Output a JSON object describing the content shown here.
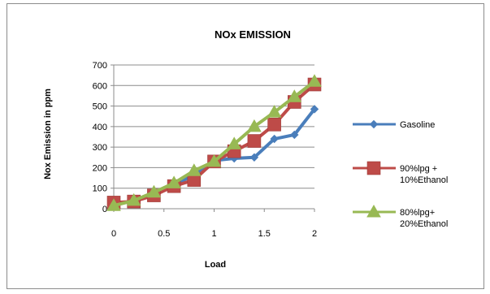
{
  "chart_data": {
    "type": "line",
    "title": "NOx  EMISSION",
    "xlabel": "Load",
    "ylabel": "Nox Emission in ppm",
    "xlim": [
      0,
      2
    ],
    "ylim": [
      0,
      700
    ],
    "xticks": [
      0,
      0.5,
      1,
      1.5,
      2
    ],
    "xtick_labels": [
      "0",
      "0.5",
      "1",
      "1.5",
      "2"
    ],
    "yticks": [
      0,
      100,
      200,
      300,
      400,
      500,
      600,
      700
    ],
    "ytick_labels": [
      "0",
      "100",
      "200",
      "300",
      "400",
      "500",
      "600",
      "700"
    ],
    "grid": "horizontal",
    "legend_position": "right",
    "x": [
      0,
      0.2,
      0.4,
      0.6,
      0.8,
      1.0,
      1.2,
      1.4,
      1.6,
      1.8,
      2.0
    ],
    "series": [
      {
        "name": "Gasoline",
        "color": "#4a7ebb",
        "marker": "diamond",
        "values": [
          25,
          35,
          70,
          115,
          165,
          235,
          245,
          250,
          340,
          360,
          485
        ]
      },
      {
        "name": "90%lpg + 10%Ethanol",
        "legend_lines": [
          "90%lpg +",
          "10%Ethanol"
        ],
        "color": "#be4b48",
        "marker": "square",
        "values": [
          30,
          35,
          65,
          110,
          140,
          230,
          280,
          330,
          410,
          520,
          605
        ]
      },
      {
        "name": "80%lpg+ 20%Ethanol",
        "legend_lines": [
          "80%lpg+",
          "20%Ethanol"
        ],
        "color": "#98b954",
        "marker": "triangle",
        "values": [
          15,
          40,
          80,
          125,
          185,
          230,
          315,
          400,
          470,
          545,
          620
        ]
      }
    ]
  }
}
